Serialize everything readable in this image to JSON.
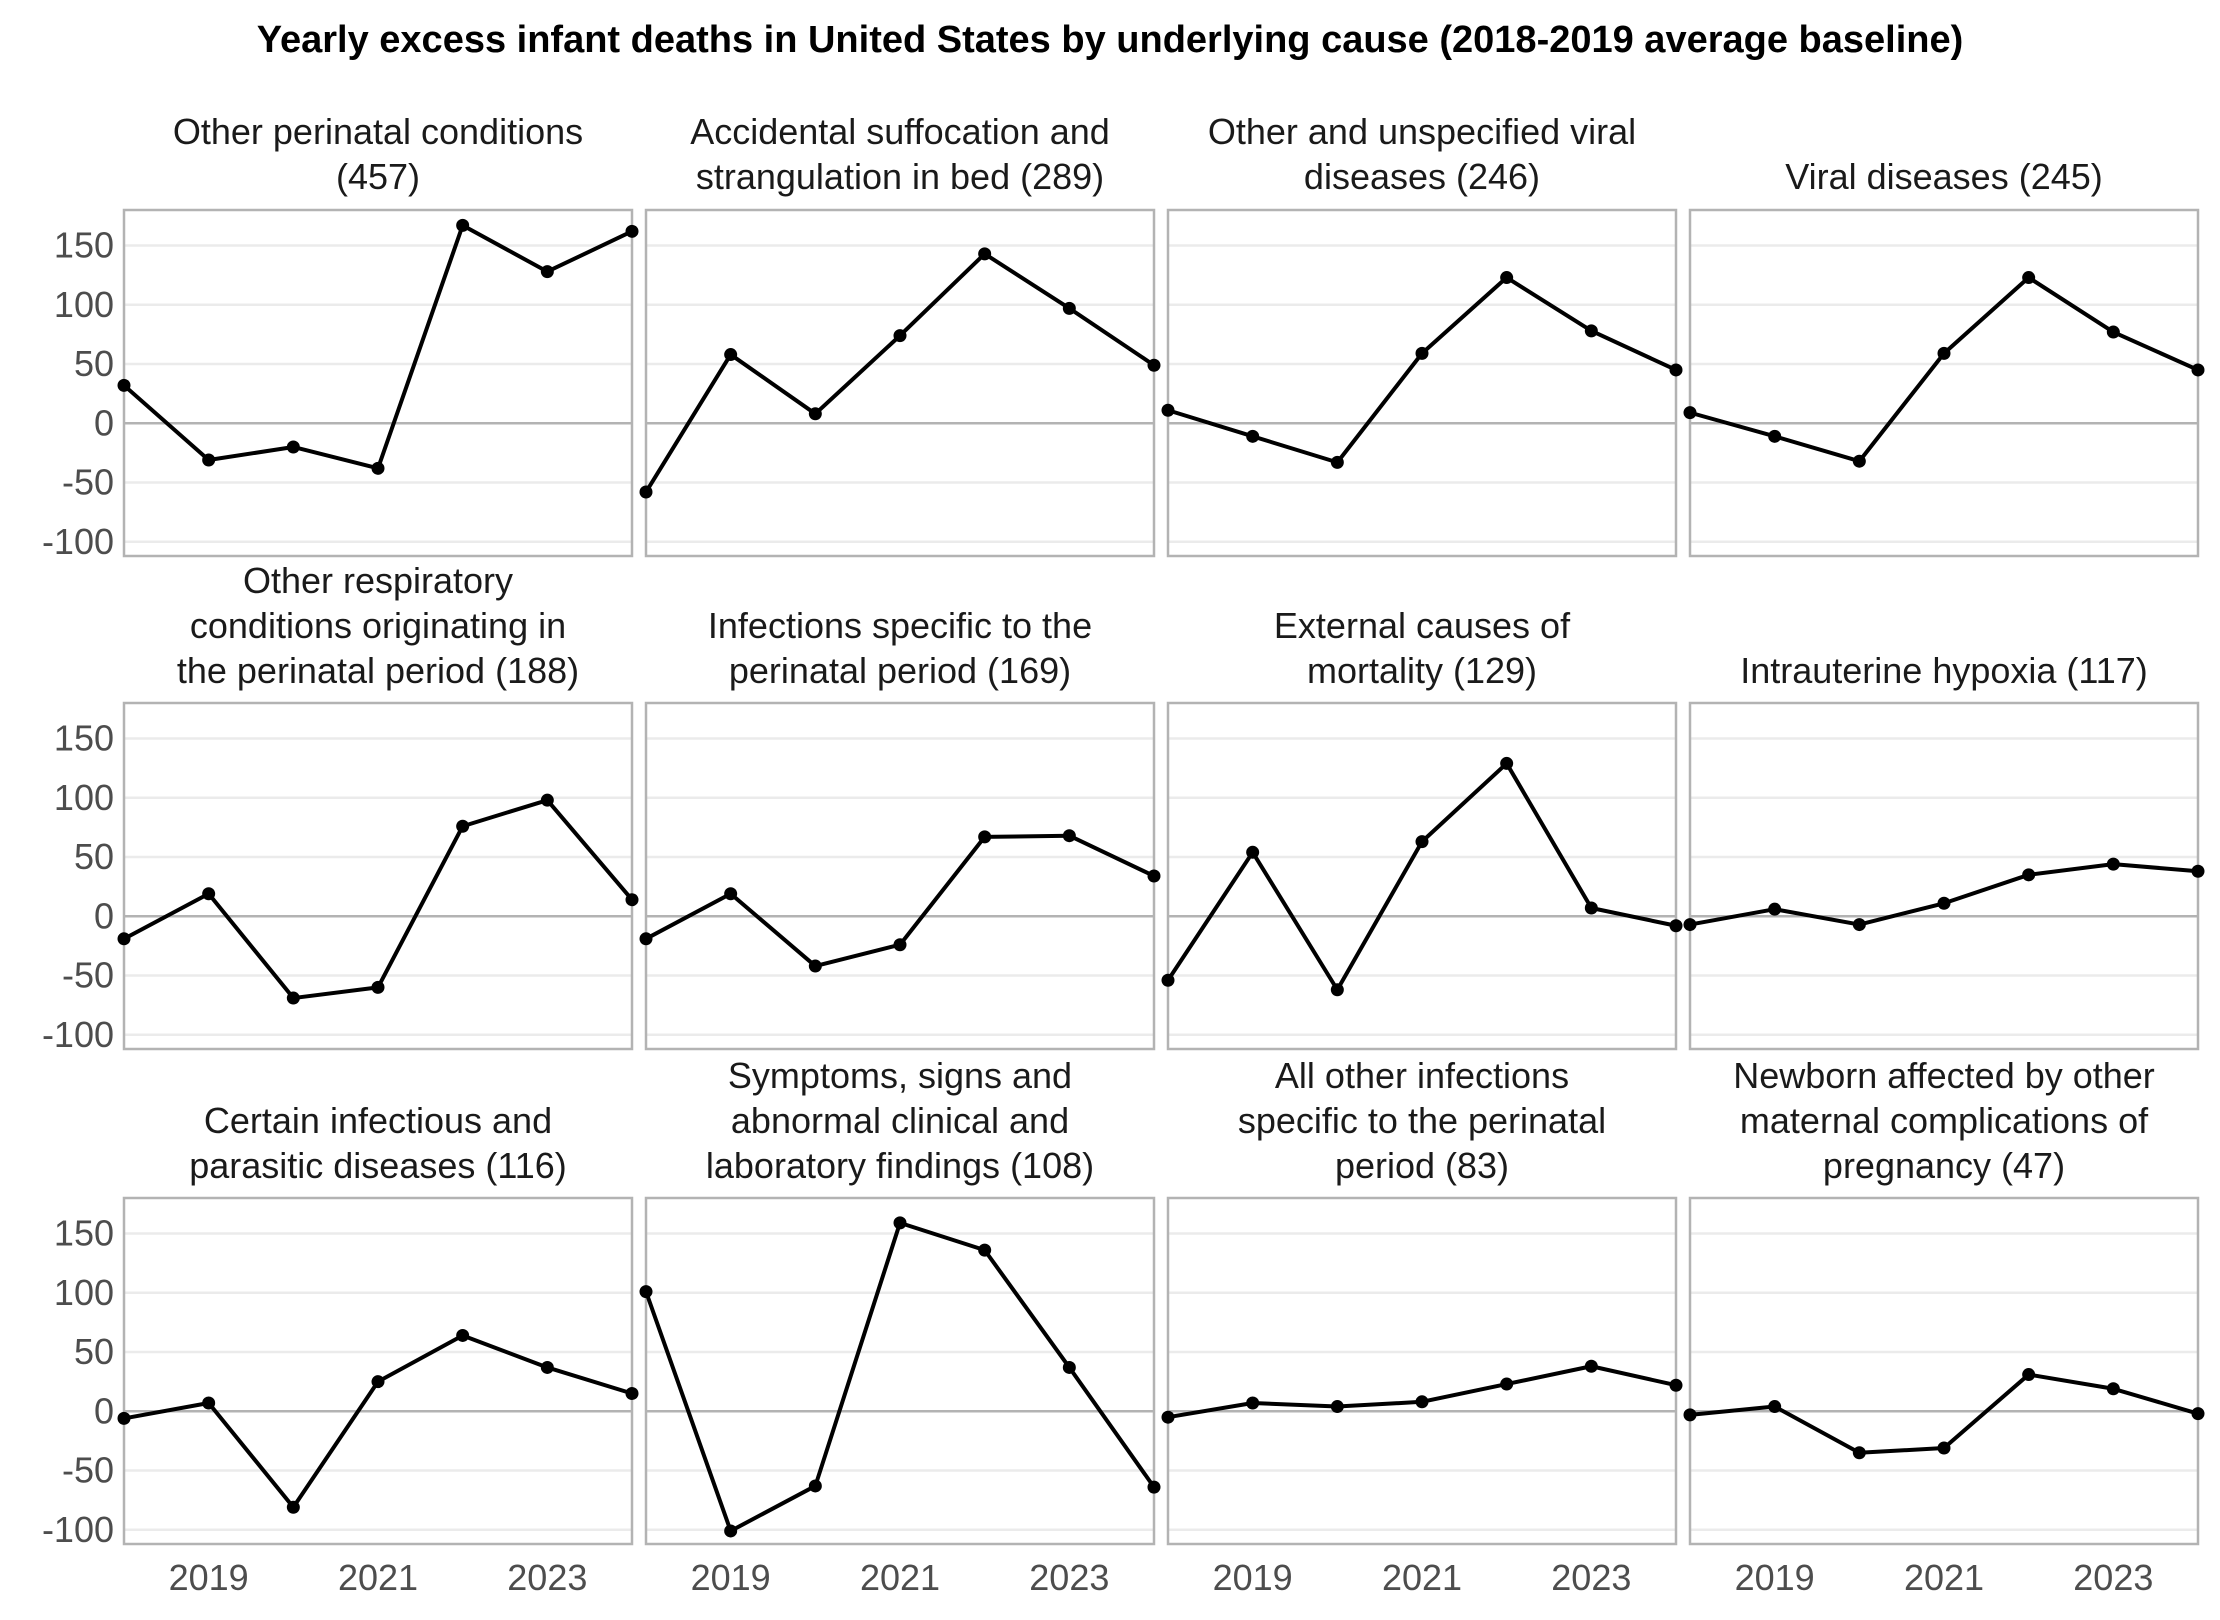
{
  "chart_data": {
    "type": "line",
    "title": "Yearly excess infant deaths in United States by underlying cause (2018-2019 average baseline)",
    "x": [
      2018,
      2019,
      2020,
      2021,
      2022,
      2023,
      2024
    ],
    "xticks": [
      "2019",
      "2021",
      "2023"
    ],
    "ylim": [
      -112,
      180
    ],
    "yticks": [
      "150",
      "100",
      "50",
      "0",
      "-50",
      "-100"
    ],
    "grid": true,
    "colors": {
      "line": "#000000",
      "panel_border": "#b3b3b3",
      "gridline": "#ebebeb",
      "zero_line": "#b3b3b3"
    },
    "panels": [
      {
        "title": [
          "Other perinatal conditions",
          "(457)"
        ],
        "values": [
          32,
          -31,
          -20,
          -38,
          167,
          128,
          162
        ]
      },
      {
        "title": [
          "Accidental suffocation and",
          "strangulation in bed (289)"
        ],
        "values": [
          -58,
          58,
          8,
          74,
          143,
          97,
          49
        ]
      },
      {
        "title": [
          "Other and unspecified viral",
          "diseases (246)"
        ],
        "values": [
          11,
          -11,
          -33,
          59,
          123,
          78,
          45
        ]
      },
      {
        "title": [
          "Viral diseases (245)"
        ],
        "values": [
          9,
          -11,
          -32,
          59,
          123,
          77,
          45
        ]
      },
      {
        "title": [
          "Other respiratory",
          "conditions originating in",
          "the perinatal period (188)"
        ],
        "values": [
          -19,
          19,
          -69,
          -60,
          76,
          98,
          14
        ]
      },
      {
        "title": [
          "Infections specific to the",
          "perinatal period (169)"
        ],
        "values": [
          -19,
          19,
          -42,
          -24,
          67,
          68,
          34
        ]
      },
      {
        "title": [
          "External causes of",
          "mortality (129)"
        ],
        "values": [
          -54,
          54,
          -62,
          63,
          129,
          7,
          -8
        ]
      },
      {
        "title": [
          "Intrauterine hypoxia (117)"
        ],
        "values": [
          -7,
          6,
          -7,
          11,
          35,
          44,
          38
        ]
      },
      {
        "title": [
          "Certain infectious and",
          "parasitic diseases (116)"
        ],
        "values": [
          -6,
          7,
          -81,
          25,
          64,
          37,
          15
        ]
      },
      {
        "title": [
          "Symptoms, signs and",
          "abnormal clinical and",
          "laboratory findings (108)"
        ],
        "values": [
          101,
          -101,
          -63,
          159,
          136,
          37,
          -64
        ]
      },
      {
        "title": [
          "All other infections",
          "specific to the perinatal",
          "period (83)"
        ],
        "values": [
          -5,
          7,
          4,
          8,
          23,
          38,
          22
        ]
      },
      {
        "title": [
          "Newborn affected by other",
          "maternal complications of",
          "pregnancy (47)"
        ],
        "values": [
          -3,
          4,
          -35,
          -31,
          31,
          19,
          -2
        ]
      }
    ]
  }
}
